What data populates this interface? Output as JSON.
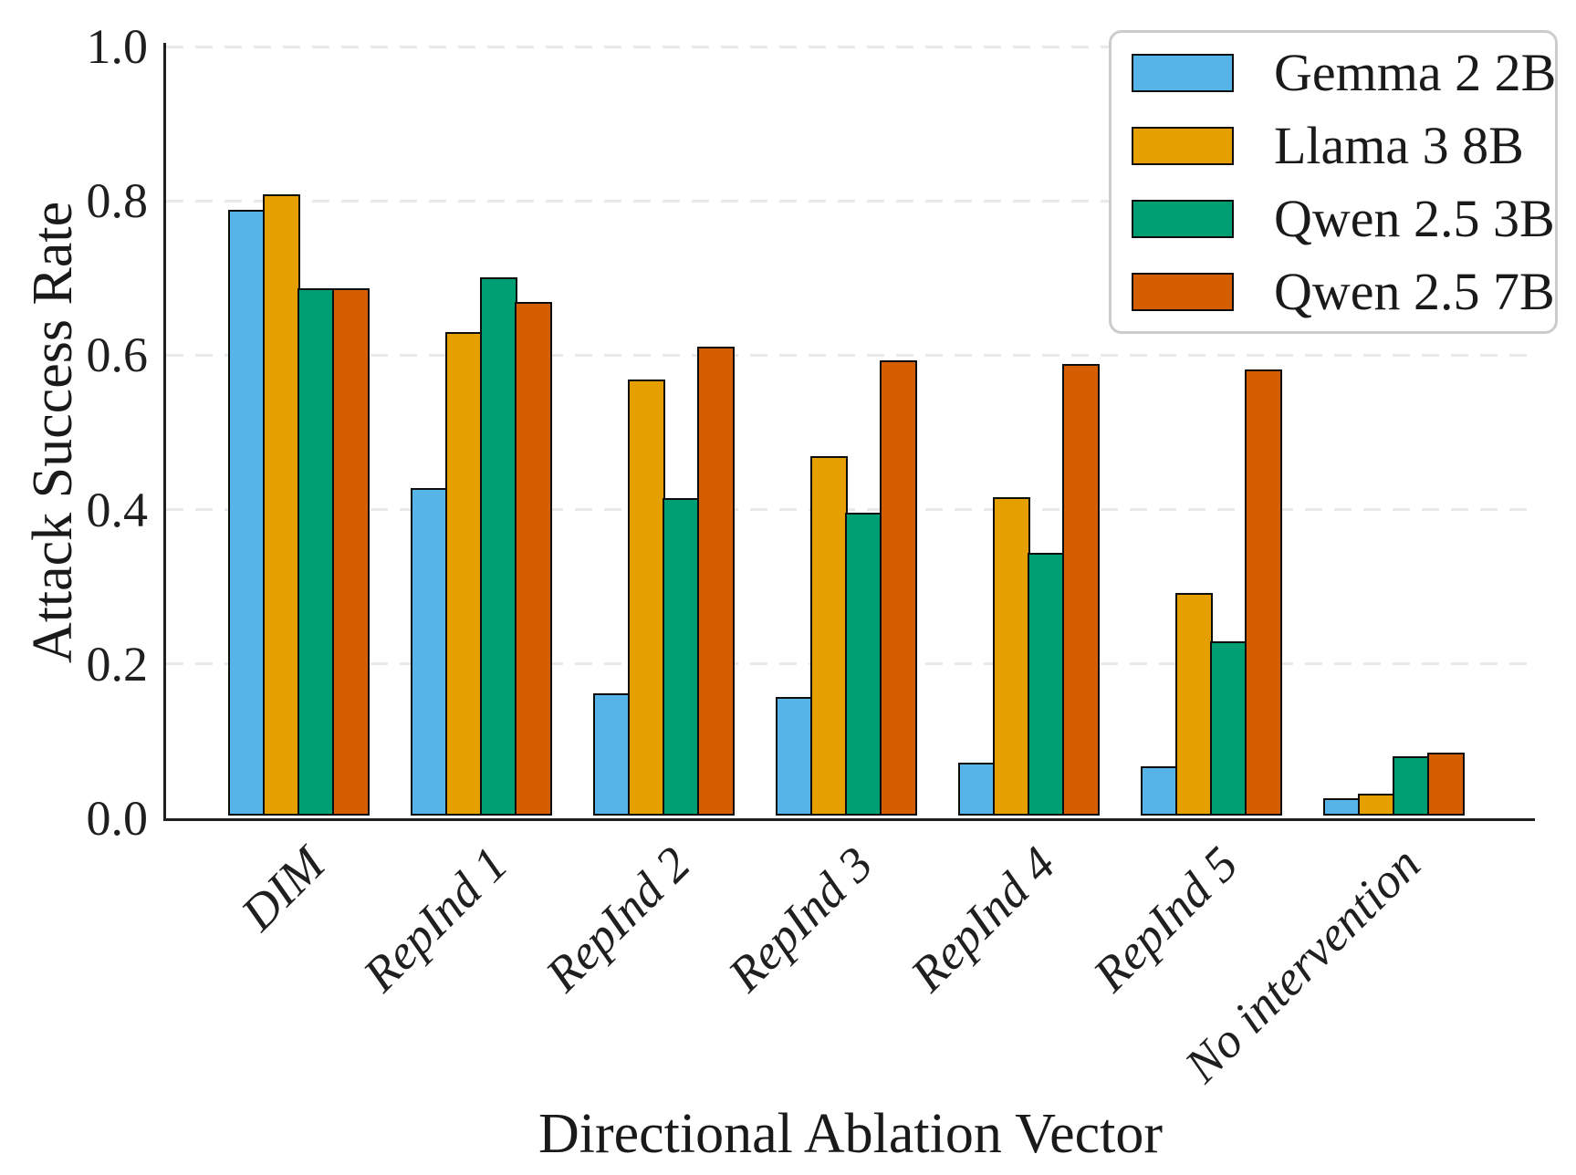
{
  "chart_data": {
    "type": "bar",
    "title": "",
    "xlabel": "Directional Ablation Vector",
    "ylabel": "Attack Success Rate",
    "categories": [
      "DIM",
      "RepInd 1",
      "RepInd 2",
      "RepInd 3",
      "RepInd 4",
      "RepInd 5",
      "No intervention"
    ],
    "series": [
      {
        "name": "Gemma 2 2B",
        "color": "#56B4E9",
        "values": [
          0.785,
          0.424,
          0.158,
          0.154,
          0.068,
          0.064,
          0.022
        ]
      },
      {
        "name": "Llama 3 8B",
        "color": "#E69F00",
        "values": [
          0.805,
          0.626,
          0.565,
          0.466,
          0.413,
          0.288,
          0.028
        ]
      },
      {
        "name": "Qwen 2.5 3B",
        "color": "#009E73",
        "values": [
          0.683,
          0.697,
          0.411,
          0.392,
          0.34,
          0.226,
          0.077
        ]
      },
      {
        "name": "Qwen 2.5 7B",
        "color": "#D55E00",
        "values": [
          0.683,
          0.666,
          0.607,
          0.59,
          0.585,
          0.578,
          0.082
        ]
      }
    ],
    "ylim": [
      0.0,
      1.0
    ],
    "yticks": [
      "0.0",
      "0.2",
      "0.4",
      "0.6",
      "0.8",
      "1.0"
    ],
    "grid": "horizontal dashed",
    "legend_position": "upper right",
    "bar_edge_color": "#0d0d0d",
    "gridline_color": "#e9e9e9",
    "axis_color": "#1f1f1f"
  }
}
